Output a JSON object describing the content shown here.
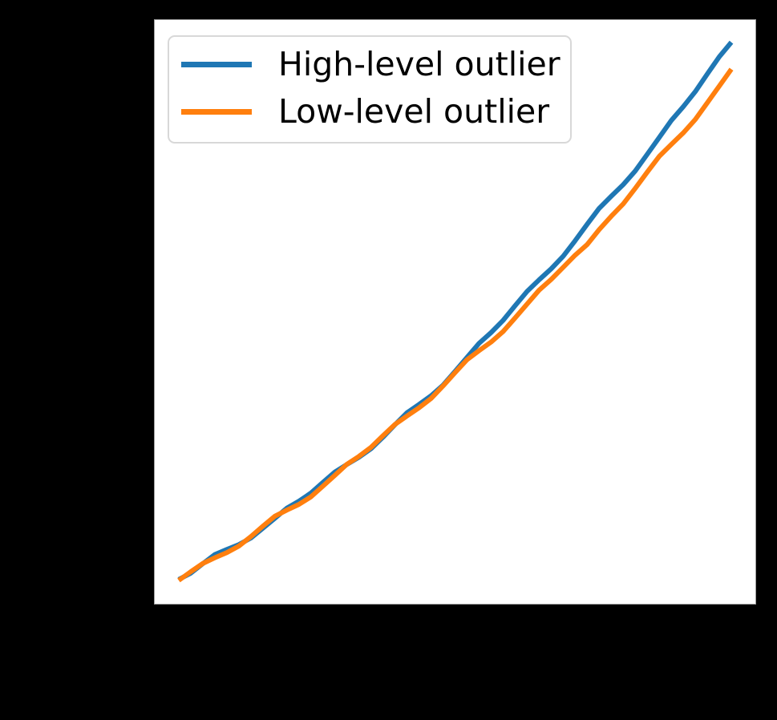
{
  "figure": {
    "background_color": "#000000",
    "plot_background_color": "#ffffff",
    "plot_border_color": "#a0a0a0"
  },
  "legend": {
    "position": "upper left",
    "border_color": "#d8d8d8",
    "background_color": "#ffffff"
  },
  "chart_data": {
    "type": "line",
    "title": "",
    "xlabel": "",
    "ylabel": "",
    "x_range": [
      0,
      1
    ],
    "y_range": [
      0,
      1
    ],
    "grid": false,
    "tick_labels_visible": false,
    "legend_position": "upper left",
    "series": [
      {
        "name": "High-level outlier",
        "color": "#1f77b4",
        "line_width": 6,
        "points": [
          [
            0.04,
            0.0415
          ],
          [
            0.06,
            0.0524
          ],
          [
            0.08,
            0.0686
          ],
          [
            0.1,
            0.0842
          ],
          [
            0.12,
            0.093
          ],
          [
            0.14,
            0.1012
          ],
          [
            0.16,
            0.1126
          ],
          [
            0.18,
            0.1294
          ],
          [
            0.2,
            0.1465
          ],
          [
            0.22,
            0.1639
          ],
          [
            0.24,
            0.1756
          ],
          [
            0.26,
            0.1897
          ],
          [
            0.28,
            0.208
          ],
          [
            0.3,
            0.2257
          ],
          [
            0.32,
            0.2386
          ],
          [
            0.34,
            0.2509
          ],
          [
            0.36,
            0.2655
          ],
          [
            0.38,
            0.2854
          ],
          [
            0.4,
            0.3067
          ],
          [
            0.42,
            0.3272
          ],
          [
            0.44,
            0.3414
          ],
          [
            0.46,
            0.3563
          ],
          [
            0.48,
            0.3745
          ],
          [
            0.5,
            0.3981
          ],
          [
            0.52,
            0.422
          ],
          [
            0.54,
            0.4462
          ],
          [
            0.56,
            0.4647
          ],
          [
            0.58,
            0.4855
          ],
          [
            0.6,
            0.5107
          ],
          [
            0.62,
            0.5352
          ],
          [
            0.64,
            0.5549
          ],
          [
            0.66,
            0.5739
          ],
          [
            0.68,
            0.5954
          ],
          [
            0.7,
            0.6221
          ],
          [
            0.72,
            0.6501
          ],
          [
            0.74,
            0.6774
          ],
          [
            0.76,
            0.6981
          ],
          [
            0.78,
            0.7181
          ],
          [
            0.8,
            0.7414
          ],
          [
            0.82,
            0.77
          ],
          [
            0.84,
            0.7988
          ],
          [
            0.86,
            0.828
          ],
          [
            0.88,
            0.8516
          ],
          [
            0.9,
            0.8774
          ],
          [
            0.92,
            0.9076
          ],
          [
            0.94,
            0.9371
          ],
          [
            0.96,
            0.9619
          ]
        ]
      },
      {
        "name": "Low-level outlier",
        "color": "#ff7f0e",
        "line_width": 6,
        "points": [
          [
            0.04,
            0.04
          ],
          [
            0.06,
            0.0549
          ],
          [
            0.08,
            0.0691
          ],
          [
            0.1,
            0.0787
          ],
          [
            0.12,
            0.0875
          ],
          [
            0.14,
            0.0987
          ],
          [
            0.16,
            0.1151
          ],
          [
            0.18,
            0.1329
          ],
          [
            0.2,
            0.15
          ],
          [
            0.22,
            0.1604
          ],
          [
            0.24,
            0.1701
          ],
          [
            0.26,
            0.1832
          ],
          [
            0.28,
            0.2015
          ],
          [
            0.3,
            0.2202
          ],
          [
            0.32,
            0.2391
          ],
          [
            0.34,
            0.2524
          ],
          [
            0.36,
            0.268
          ],
          [
            0.38,
            0.2879
          ],
          [
            0.4,
            0.3072
          ],
          [
            0.42,
            0.3217
          ],
          [
            0.44,
            0.3356
          ],
          [
            0.46,
            0.3517
          ],
          [
            0.48,
            0.3732
          ],
          [
            0.5,
            0.396
          ],
          [
            0.52,
            0.4181
          ],
          [
            0.54,
            0.4335
          ],
          [
            0.56,
            0.4483
          ],
          [
            0.58,
            0.4663
          ],
          [
            0.6,
            0.4897
          ],
          [
            0.62,
            0.5134
          ],
          [
            0.64,
            0.5373
          ],
          [
            0.66,
            0.5556
          ],
          [
            0.68,
            0.5763
          ],
          [
            0.7,
            0.5972
          ],
          [
            0.72,
            0.6154
          ],
          [
            0.74,
            0.641
          ],
          [
            0.76,
            0.6639
          ],
          [
            0.78,
            0.6851
          ],
          [
            0.8,
            0.7116
          ],
          [
            0.82,
            0.7394
          ],
          [
            0.84,
            0.7665
          ],
          [
            0.86,
            0.7869
          ],
          [
            0.88,
            0.8067
          ],
          [
            0.9,
            0.8297
          ],
          [
            0.92,
            0.8582
          ],
          [
            0.94,
            0.8869
          ],
          [
            0.96,
            0.9159
          ]
        ]
      }
    ]
  }
}
